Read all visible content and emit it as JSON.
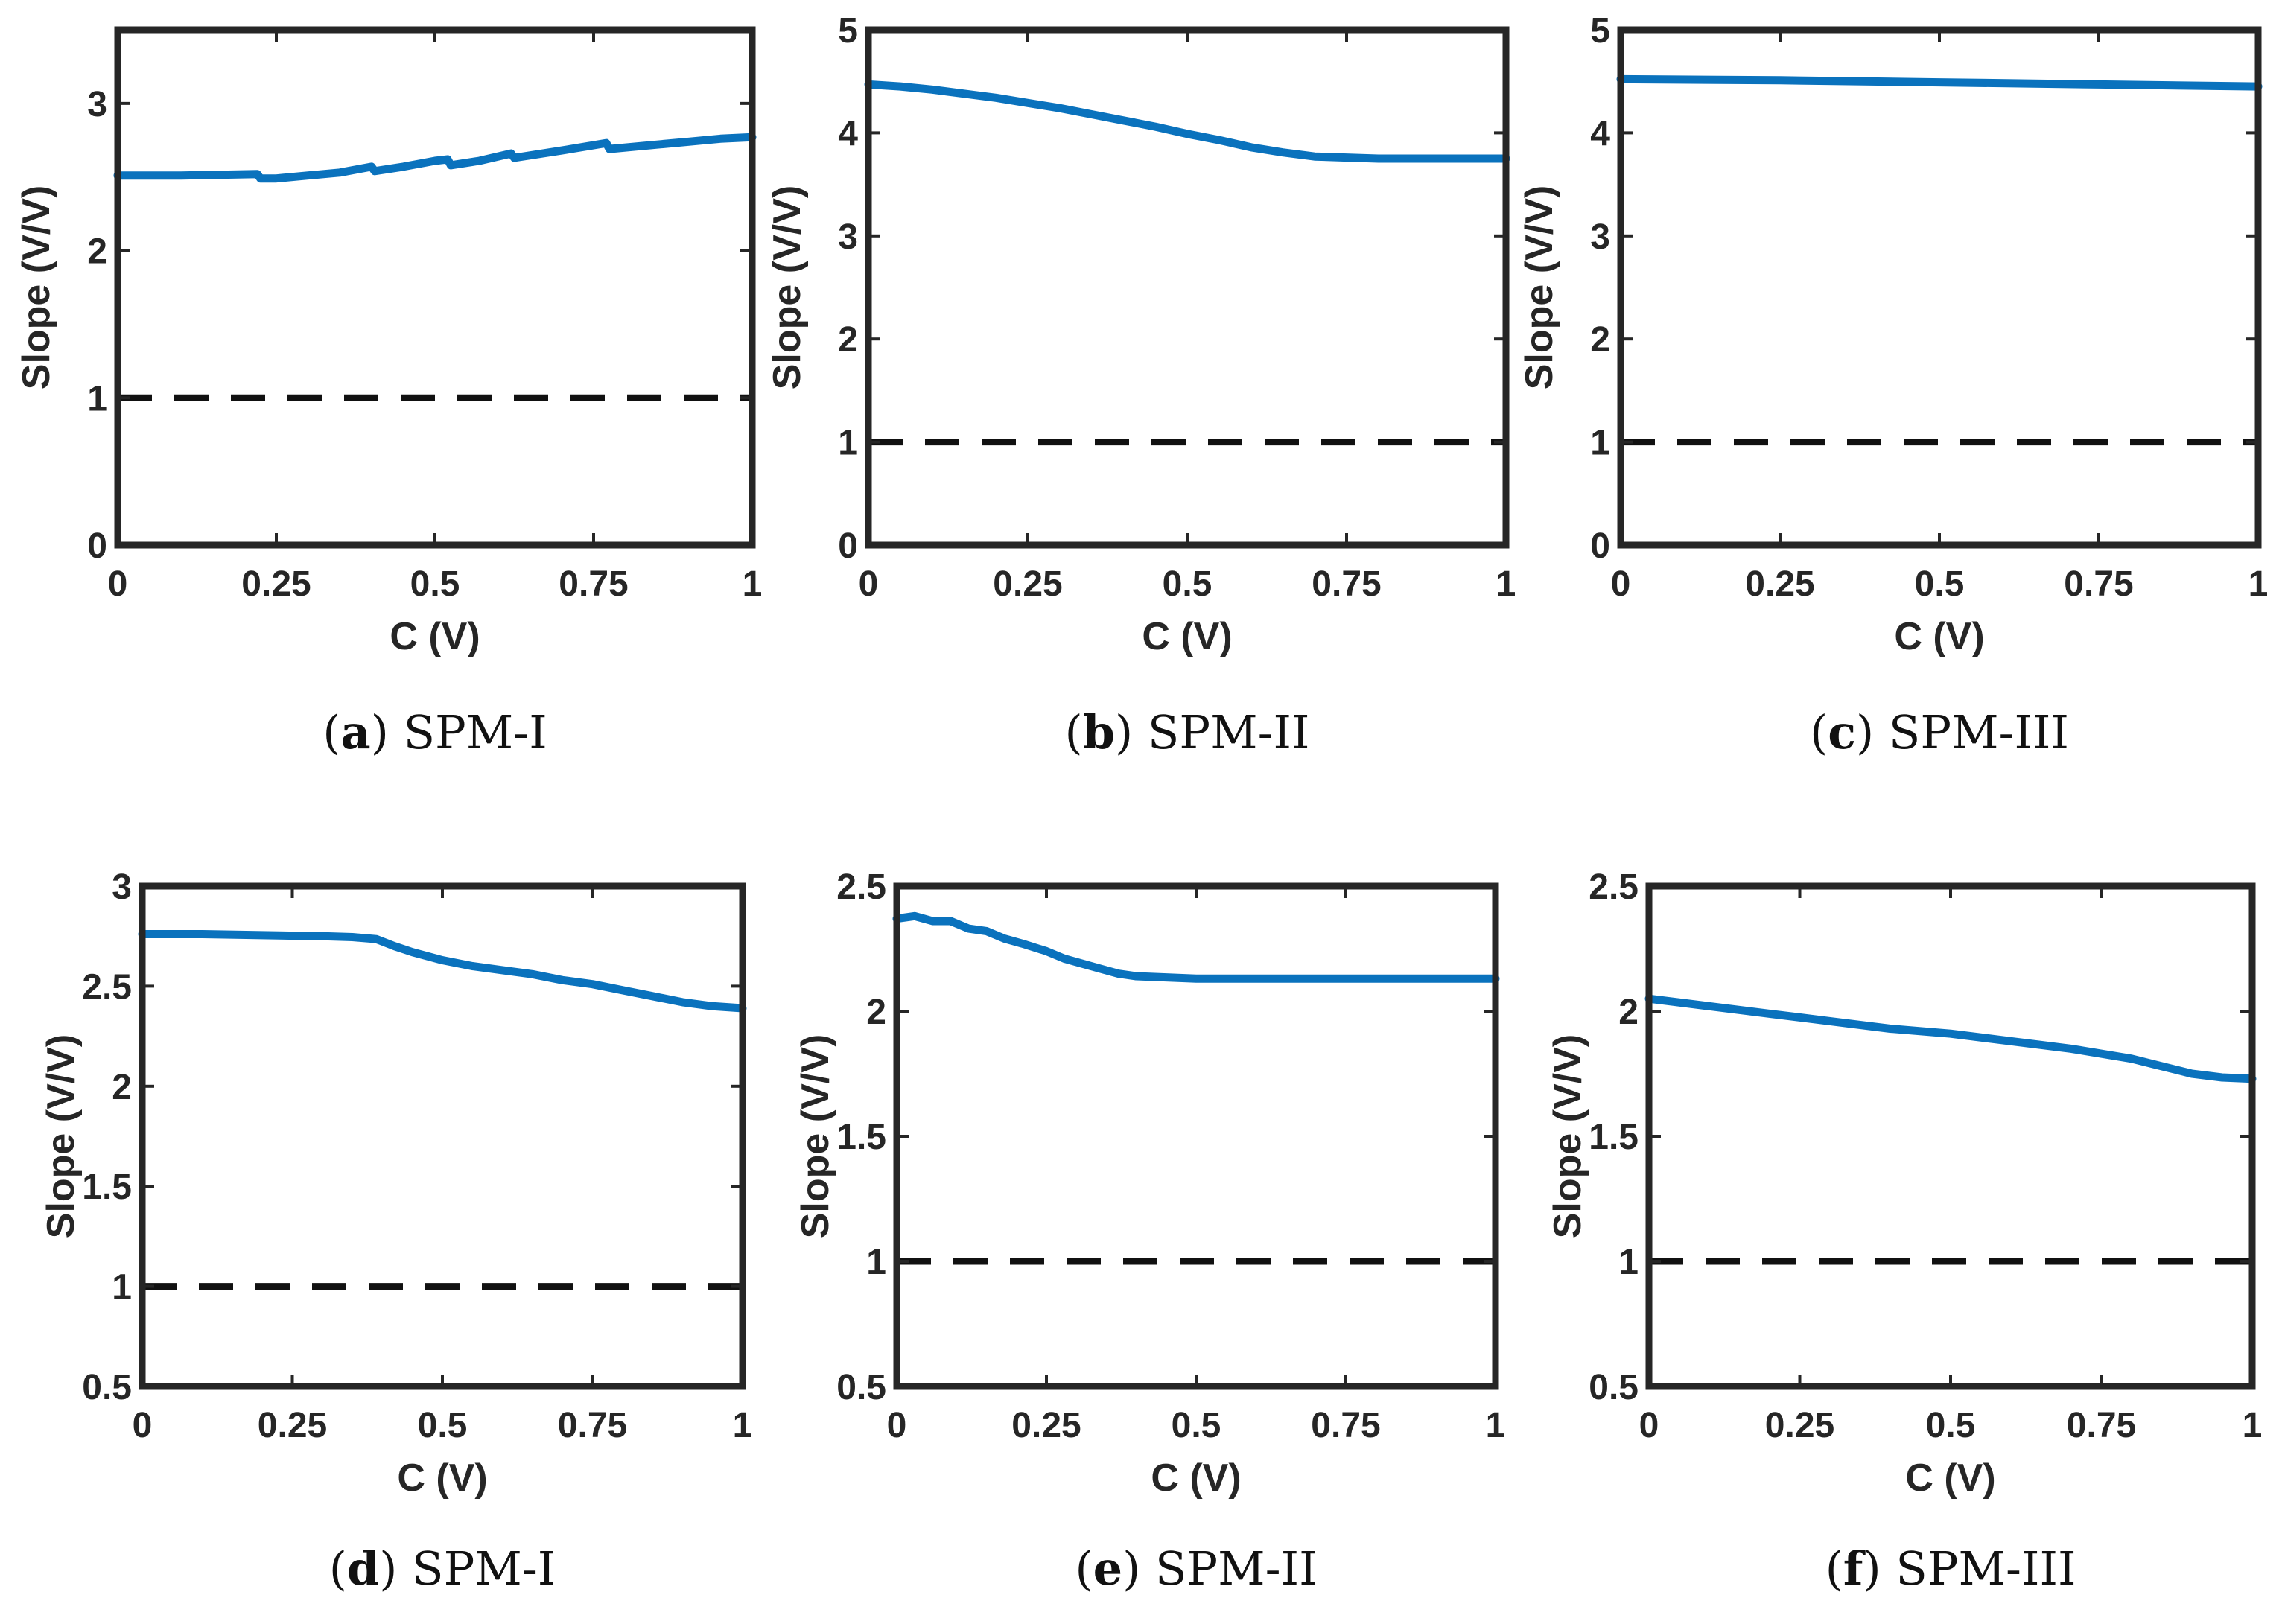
{
  "figure": {
    "colors": {
      "series": "#0a72bd",
      "reference": "#111111",
      "axes": "#262626"
    }
  },
  "chart_data": [
    {
      "type": "line",
      "caption": {
        "letter": "a",
        "text": "SPM-I"
      },
      "xlabel": "C (V)",
      "ylabel": "Slope (V/V)",
      "xlim": [
        0,
        1
      ],
      "ylim": [
        0,
        3.5
      ],
      "xticks": [
        "0",
        "0.25",
        "0.5",
        "0.75",
        "1"
      ],
      "yticks": [
        "0",
        "1",
        "2",
        "3"
      ],
      "xtick_values": [
        0,
        0.25,
        0.5,
        0.75,
        1
      ],
      "ytick_values": [
        0,
        1,
        2,
        3
      ],
      "series": [
        {
          "x": [
            0,
            0.1,
            0.22,
            0.225,
            0.25,
            0.3,
            0.35,
            0.4,
            0.405,
            0.45,
            0.5,
            0.52,
            0.525,
            0.57,
            0.62,
            0.625,
            0.7,
            0.77,
            0.775,
            0.85,
            0.9,
            0.95,
            1
          ],
          "y": [
            2.51,
            2.51,
            2.52,
            2.49,
            2.49,
            2.51,
            2.53,
            2.57,
            2.54,
            2.57,
            2.61,
            2.62,
            2.58,
            2.61,
            2.66,
            2.63,
            2.68,
            2.73,
            2.69,
            2.72,
            2.74,
            2.76,
            2.77
          ]
        },
        {
          "x": [
            0,
            1
          ],
          "y": [
            1,
            1
          ],
          "style": "dashed"
        }
      ]
    },
    {
      "type": "line",
      "caption": {
        "letter": "b",
        "text": "SPM-II"
      },
      "xlabel": "C (V)",
      "ylabel": "Slope (V/V)",
      "xlim": [
        0,
        1
      ],
      "ylim": [
        0,
        5
      ],
      "xticks": [
        "0",
        "0.25",
        "0.5",
        "0.75",
        "1"
      ],
      "yticks": [
        "0",
        "1",
        "2",
        "3",
        "4",
        "5"
      ],
      "xtick_values": [
        0,
        0.25,
        0.5,
        0.75,
        1
      ],
      "ytick_values": [
        0,
        1,
        2,
        3,
        4,
        5
      ],
      "series": [
        {
          "x": [
            0,
            0.05,
            0.1,
            0.15,
            0.2,
            0.25,
            0.3,
            0.35,
            0.4,
            0.45,
            0.5,
            0.55,
            0.6,
            0.65,
            0.7,
            0.75,
            0.8,
            0.85,
            0.9,
            0.95,
            1
          ],
          "y": [
            4.47,
            4.45,
            4.42,
            4.38,
            4.34,
            4.29,
            4.24,
            4.18,
            4.12,
            4.06,
            3.99,
            3.93,
            3.86,
            3.81,
            3.77,
            3.76,
            3.75,
            3.75,
            3.75,
            3.75,
            3.75
          ]
        },
        {
          "x": [
            0,
            1
          ],
          "y": [
            1,
            1
          ],
          "style": "dashed"
        }
      ]
    },
    {
      "type": "line",
      "caption": {
        "letter": "c",
        "text": "SPM-III"
      },
      "xlabel": "C (V)",
      "ylabel": "Slope (V/V)",
      "xlim": [
        0,
        1
      ],
      "ylim": [
        0,
        5
      ],
      "xticks": [
        "0",
        "0.25",
        "0.5",
        "0.75",
        "1"
      ],
      "yticks": [
        "0",
        "1",
        "2",
        "3",
        "4",
        "5"
      ],
      "xtick_values": [
        0,
        0.25,
        0.5,
        0.75,
        1
      ],
      "ytick_values": [
        0,
        1,
        2,
        3,
        4,
        5
      ],
      "series": [
        {
          "x": [
            0,
            0.25,
            0.5,
            0.75,
            1
          ],
          "y": [
            4.52,
            4.51,
            4.49,
            4.47,
            4.45
          ]
        },
        {
          "x": [
            0,
            1
          ],
          "y": [
            1,
            1
          ],
          "style": "dashed"
        }
      ]
    },
    {
      "type": "line",
      "caption": {
        "letter": "d",
        "text": "SPM-I"
      },
      "xlabel": "C (V)",
      "ylabel": "Slope (V/V)",
      "xlim": [
        0,
        1
      ],
      "ylim": [
        0.5,
        3
      ],
      "xticks": [
        "0",
        "0.25",
        "0.5",
        "0.75",
        "1"
      ],
      "yticks": [
        "0.5",
        "1",
        "1.5",
        "2",
        "2.5",
        "3"
      ],
      "xtick_values": [
        0,
        0.25,
        0.5,
        0.75,
        1
      ],
      "ytick_values": [
        0.5,
        1,
        1.5,
        2,
        2.5,
        3
      ],
      "series": [
        {
          "x": [
            0,
            0.1,
            0.2,
            0.3,
            0.35,
            0.39,
            0.42,
            0.45,
            0.5,
            0.55,
            0.6,
            0.65,
            0.7,
            0.75,
            0.8,
            0.85,
            0.9,
            0.95,
            1
          ],
          "y": [
            2.76,
            2.76,
            2.755,
            2.75,
            2.745,
            2.735,
            2.7,
            2.67,
            2.63,
            2.6,
            2.58,
            2.56,
            2.53,
            2.51,
            2.48,
            2.45,
            2.42,
            2.4,
            2.39
          ]
        },
        {
          "x": [
            0,
            1
          ],
          "y": [
            1,
            1
          ],
          "style": "dashed"
        }
      ]
    },
    {
      "type": "line",
      "caption": {
        "letter": "e",
        "text": "SPM-II"
      },
      "xlabel": "C (V)",
      "ylabel": "Slope (V/V)",
      "xlim": [
        0,
        1
      ],
      "ylim": [
        0.5,
        2.5
      ],
      "xticks": [
        "0",
        "0.25",
        "0.5",
        "0.75",
        "1"
      ],
      "yticks": [
        "0.5",
        "1",
        "1.5",
        "2",
        "2.5"
      ],
      "xtick_values": [
        0,
        0.25,
        0.5,
        0.75,
        1
      ],
      "ytick_values": [
        0.5,
        1,
        1.5,
        2,
        2.5
      ],
      "series": [
        {
          "x": [
            0,
            0.03,
            0.06,
            0.09,
            0.12,
            0.15,
            0.18,
            0.21,
            0.25,
            0.28,
            0.31,
            0.34,
            0.37,
            0.4,
            0.45,
            0.5,
            0.6,
            0.7,
            0.8,
            0.9,
            1
          ],
          "y": [
            2.37,
            2.38,
            2.36,
            2.36,
            2.33,
            2.32,
            2.29,
            2.27,
            2.24,
            2.21,
            2.19,
            2.17,
            2.15,
            2.14,
            2.135,
            2.13,
            2.13,
            2.13,
            2.13,
            2.13,
            2.13
          ]
        },
        {
          "x": [
            0,
            1
          ],
          "y": [
            1,
            1
          ],
          "style": "dashed"
        }
      ]
    },
    {
      "type": "line",
      "caption": {
        "letter": "f",
        "text": "SPM-III"
      },
      "xlabel": "C (V)",
      "ylabel": "Slope (V/V)",
      "xlim": [
        0,
        1
      ],
      "ylim": [
        0.5,
        2.5
      ],
      "xticks": [
        "0",
        "0.25",
        "0.5",
        "0.75",
        "1"
      ],
      "yticks": [
        "0.5",
        "1",
        "1.5",
        "2",
        "2.5"
      ],
      "xtick_values": [
        0,
        0.25,
        0.5,
        0.75,
        1
      ],
      "ytick_values": [
        0.5,
        1,
        1.5,
        2,
        2.5
      ],
      "series": [
        {
          "x": [
            0,
            0.1,
            0.2,
            0.3,
            0.4,
            0.5,
            0.6,
            0.7,
            0.8,
            0.85,
            0.9,
            0.95,
            1
          ],
          "y": [
            2.05,
            2.02,
            1.99,
            1.96,
            1.93,
            1.91,
            1.88,
            1.85,
            1.81,
            1.78,
            1.75,
            1.735,
            1.73
          ]
        },
        {
          "x": [
            0,
            1
          ],
          "y": [
            1,
            1
          ],
          "style": "dashed"
        }
      ]
    }
  ]
}
